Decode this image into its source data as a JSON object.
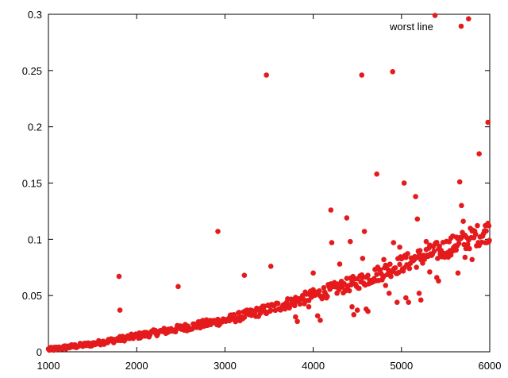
{
  "chart_data": {
    "type": "scatter",
    "xlim": [
      1000,
      6000
    ],
    "ylim": [
      0,
      0.3
    ],
    "x_ticks": [
      "1000",
      "2000",
      "3000",
      "4000",
      "5000",
      "6000"
    ],
    "y_ticks": [
      "0",
      "0.05",
      "0.1",
      "0.15",
      "0.2",
      "0.25",
      "0.3"
    ],
    "grid": false,
    "legend_position": "top-right",
    "series": [
      {
        "name": "worst line",
        "color": "#e41a1c",
        "marker": "circle",
        "main_band": {
          "x_start": 1000,
          "x_end": 5990,
          "x_step": 10,
          "trend": [
            [
              1000,
              0.002
            ],
            [
              1500,
              0.007
            ],
            [
              2000,
              0.014
            ],
            [
              2500,
              0.021
            ],
            [
              3000,
              0.028
            ],
            [
              3500,
              0.038
            ],
            [
              4000,
              0.05
            ],
            [
              4500,
              0.062
            ],
            [
              5000,
              0.078
            ],
            [
              5500,
              0.092
            ],
            [
              6000,
              0.108
            ]
          ]
        },
        "points": [
          [
            1800,
            0.067
          ],
          [
            1810,
            0.037
          ],
          [
            2470,
            0.058
          ],
          [
            2920,
            0.107
          ],
          [
            3220,
            0.068
          ],
          [
            3470,
            0.246
          ],
          [
            3520,
            0.076
          ],
          [
            3800,
            0.031
          ],
          [
            3820,
            0.027
          ],
          [
            3950,
            0.04
          ],
          [
            4000,
            0.07
          ],
          [
            4050,
            0.032
          ],
          [
            4080,
            0.028
          ],
          [
            4200,
            0.126
          ],
          [
            4210,
            0.097
          ],
          [
            4300,
            0.078
          ],
          [
            4380,
            0.119
          ],
          [
            4420,
            0.098
          ],
          [
            4440,
            0.04
          ],
          [
            4460,
            0.033
          ],
          [
            4500,
            0.037
          ],
          [
            4550,
            0.246
          ],
          [
            4560,
            0.083
          ],
          [
            4580,
            0.107
          ],
          [
            4600,
            0.038
          ],
          [
            4620,
            0.036
          ],
          [
            4720,
            0.158
          ],
          [
            4800,
            0.082
          ],
          [
            4820,
            0.059
          ],
          [
            4860,
            0.052
          ],
          [
            4900,
            0.249
          ],
          [
            4910,
            0.097
          ],
          [
            4950,
            0.044
          ],
          [
            4980,
            0.093
          ],
          [
            5020,
            0.084
          ],
          [
            5030,
            0.15
          ],
          [
            5050,
            0.048
          ],
          [
            5080,
            0.044
          ],
          [
            5160,
            0.138
          ],
          [
            5180,
            0.118
          ],
          [
            5200,
            0.052
          ],
          [
            5220,
            0.046
          ],
          [
            5280,
            0.098
          ],
          [
            5320,
            0.071
          ],
          [
            5380,
            0.299
          ],
          [
            5400,
            0.066
          ],
          [
            5420,
            0.063
          ],
          [
            5440,
            0.088
          ],
          [
            5520,
            0.088
          ],
          [
            5560,
            0.086
          ],
          [
            5620,
            0.102
          ],
          [
            5640,
            0.07
          ],
          [
            5660,
            0.151
          ],
          [
            5680,
            0.13
          ],
          [
            5700,
            0.116
          ],
          [
            5720,
            0.084
          ],
          [
            5760,
            0.296
          ],
          [
            5800,
            0.082
          ],
          [
            5880,
            0.176
          ],
          [
            5950,
            0.097
          ],
          [
            5980,
            0.204
          ],
          [
            5990,
            0.112
          ],
          [
            5995,
            0.099
          ]
        ]
      }
    ]
  }
}
